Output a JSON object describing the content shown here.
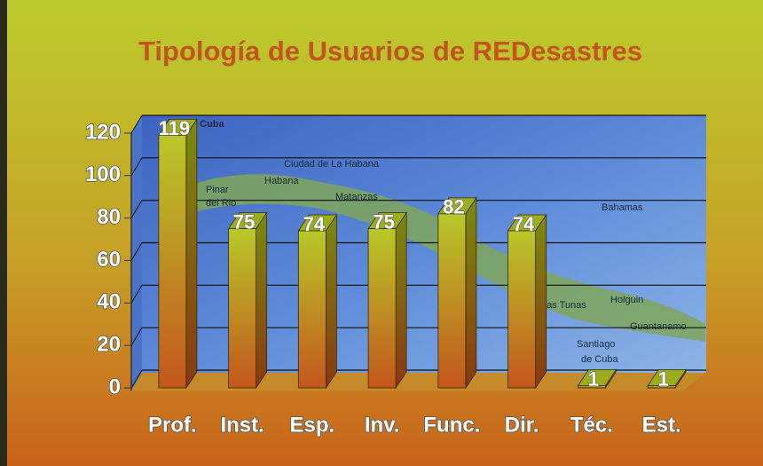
{
  "chart_data": {
    "type": "bar3d",
    "title": "Tipología de Usuarios de REDesastres",
    "categories": [
      "Prof.",
      "Inst.",
      "Esp.",
      "Inv.",
      "Func.",
      "Dir.",
      "Téc.",
      "Est."
    ],
    "values": [
      119,
      75,
      74,
      75,
      82,
      74,
      1,
      1
    ],
    "ylim": [
      0,
      120
    ],
    "yticks": [
      0,
      20,
      40,
      60,
      80,
      100,
      120
    ],
    "grid": true,
    "color": "#9aae1c",
    "map_labels": [
      "a de Cuba",
      "Ciudad de La Habana",
      "Habana",
      "Pinar",
      "del Rio",
      "Matanzas",
      "Bahamas",
      "Las Tunas",
      "Holguin",
      "Guantanamo",
      "Santiago",
      "de Cuba"
    ]
  }
}
